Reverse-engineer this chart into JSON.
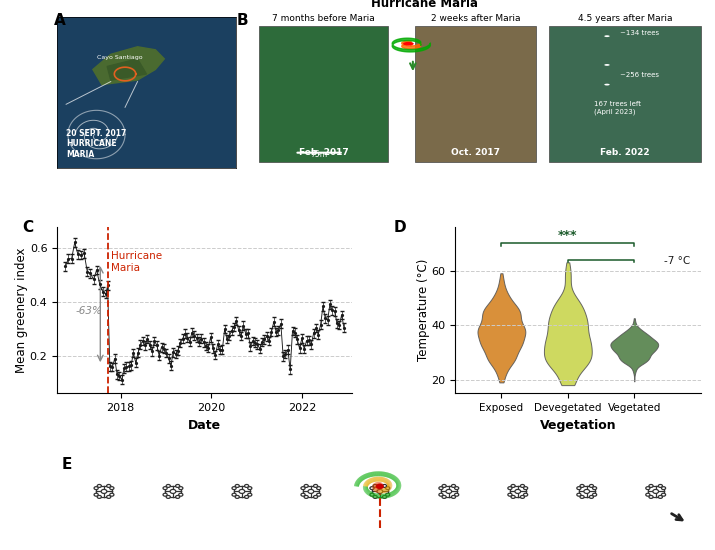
{
  "panel_C": {
    "ylabel": "Mean greenery index",
    "xlabel": "Date",
    "hurricane_label": "Hurricane\nMaria",
    "percent_label": "-63%",
    "yticks": [
      0.2,
      0.4,
      0.6
    ],
    "xtick_labels": [
      "2018",
      "2020",
      "2022"
    ],
    "line_color": "#1a1a1a",
    "hurricane_line_color": "#cc2200",
    "arrow_color": "#888888"
  },
  "panel_D": {
    "ylabel": "Temperature (°C)",
    "xlabel": "Vegetation",
    "categories": [
      "Exposed",
      "Devegetated",
      "Vegetated"
    ],
    "colors": [
      "#d4811e",
      "#c8d44a",
      "#4e7d44"
    ],
    "yticks": [
      20,
      40,
      60
    ],
    "significance": "***",
    "diff_label": "-7 °C",
    "ylim": [
      15,
      76
    ]
  },
  "background_color": "#ffffff"
}
